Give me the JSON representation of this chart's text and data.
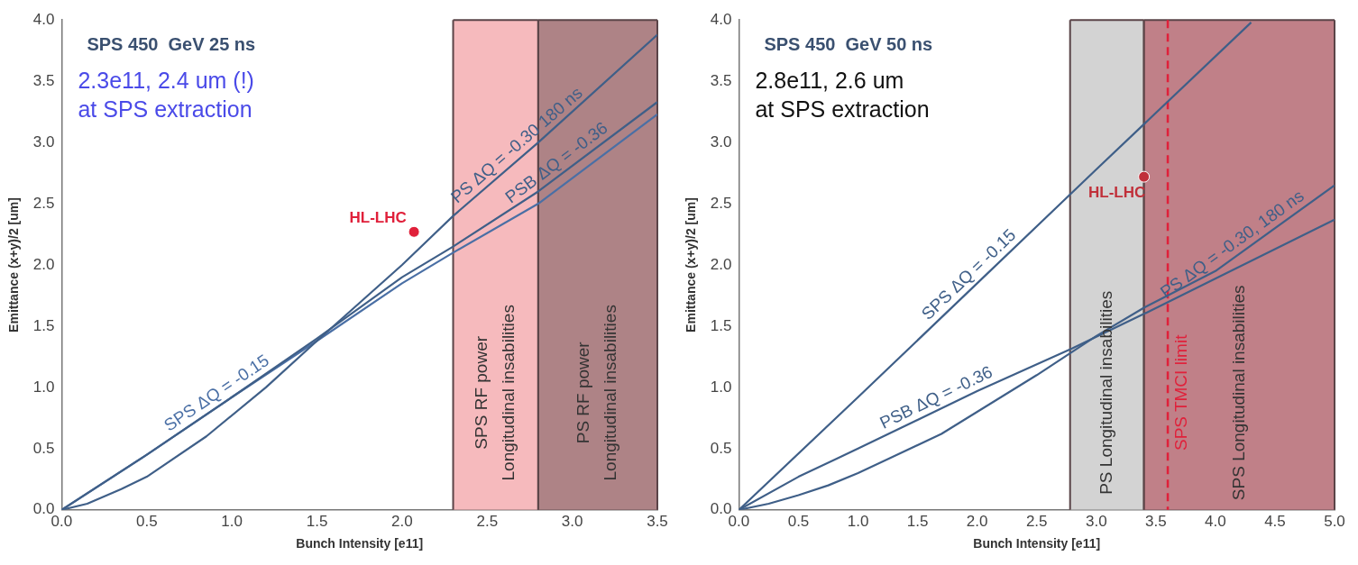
{
  "chart_data": [
    {
      "type": "line",
      "title": "SPS 450  GeV 25 ns",
      "annotations": [
        "2.3e11, 2.4 um (!)\nat SPS extraction"
      ],
      "xlabel": "Bunch Intensity [e11]",
      "ylabel": "Emittance (x+y)/2 [um]",
      "marker": "none",
      "xlim": [
        0,
        3.5
      ],
      "ylim": [
        0,
        4
      ],
      "xticks": [
        {
          "value": 0,
          "label": "0.0"
        },
        {
          "value": 0.5,
          "label": "0.5"
        },
        {
          "value": 1,
          "label": "1.0"
        },
        {
          "value": 1.5,
          "label": "1.5"
        },
        {
          "value": 2,
          "label": "2.0"
        },
        {
          "value": 2.5,
          "label": "2.5"
        },
        {
          "value": 3,
          "label": "3.0"
        },
        {
          "value": 3.5,
          "label": "3.5"
        }
      ],
      "yticks": [
        {
          "value": 0,
          "label": "0.0"
        },
        {
          "value": 0.5,
          "label": "0.5"
        },
        {
          "value": 1,
          "label": "1.0"
        },
        {
          "value": 1.5,
          "label": "1.5"
        },
        {
          "value": 2,
          "label": "2.0"
        },
        {
          "value": 2.5,
          "label": "2.5"
        },
        {
          "value": 3,
          "label": "3.0"
        },
        {
          "value": 3.5,
          "label": "3.5"
        },
        {
          "value": 4,
          "label": "4.0"
        }
      ],
      "bands": [
        {
          "axis": "x",
          "from": 2.3,
          "to": 2.8,
          "label": "SPS RF power\nLongitudinal insabilities",
          "color": "#f4a9ad"
        },
        {
          "axis": "x",
          "from": 2.8,
          "to": 3.5,
          "label": "PS RF power\nLongitudinal insabilities",
          "color": "#9a6468"
        }
      ],
      "series": [
        {
          "name": "PS ΔQ = -0.30 180 ns",
          "color": "#3f5f88",
          "x": [
            0,
            0.15,
            0.35,
            0.5,
            0.85,
            1.2,
            1.5,
            2.0,
            2.3,
            2.8,
            3.5
          ],
          "values": [
            0,
            0.05,
            0.17,
            0.27,
            0.6,
            1.0,
            1.38,
            2.0,
            2.4,
            3.0,
            3.88
          ]
        },
        {
          "name": "PSB ΔQ = -0.36",
          "color": "#3f5f88",
          "x": [
            0,
            0.5,
            1.0,
            1.5,
            2.0,
            2.3,
            2.8,
            3.5
          ],
          "values": [
            0,
            0.45,
            0.92,
            1.4,
            1.9,
            2.15,
            2.6,
            3.33
          ]
        },
        {
          "name": "SPS ΔQ = -0.15",
          "color": "#4a6fa5",
          "x": [
            0,
            0.5,
            1.0,
            1.5,
            2.0,
            2.3,
            2.8,
            3.5
          ],
          "values": [
            0,
            0.45,
            0.92,
            1.38,
            1.85,
            2.1,
            2.5,
            3.23
          ]
        },
        {
          "name": "HL-LHC",
          "type": "scatter",
          "marker": "circle",
          "color": "#e0203a",
          "x": [
            2.07
          ],
          "values": [
            2.27
          ]
        }
      ]
    },
    {
      "type": "line",
      "title": "SPS 450  GeV 50 ns",
      "annotations": [
        "2.8e11, 2.6 um\nat SPS extraction"
      ],
      "xlabel": "Bunch Intensity [e11]",
      "ylabel": "Emittance (x+y)/2 [um]",
      "marker": "none",
      "xlim": [
        0,
        5
      ],
      "ylim": [
        0,
        4
      ],
      "xticks": [
        {
          "value": 0,
          "label": "0.0"
        },
        {
          "value": 0.5,
          "label": "0.5"
        },
        {
          "value": 1,
          "label": "1.0"
        },
        {
          "value": 1.5,
          "label": "1.5"
        },
        {
          "value": 2,
          "label": "2.0"
        },
        {
          "value": 2.5,
          "label": "2.5"
        },
        {
          "value": 3,
          "label": "3.0"
        },
        {
          "value": 3.5,
          "label": "3.5"
        },
        {
          "value": 4,
          "label": "4.0"
        },
        {
          "value": 4.5,
          "label": "4.5"
        },
        {
          "value": 5,
          "label": "5.0"
        }
      ],
      "yticks": [
        {
          "value": 0,
          "label": "0.0"
        },
        {
          "value": 0.5,
          "label": "0.5"
        },
        {
          "value": 1,
          "label": "1.0"
        },
        {
          "value": 1.5,
          "label": "1.5"
        },
        {
          "value": 2,
          "label": "2.0"
        },
        {
          "value": 2.5,
          "label": "2.5"
        },
        {
          "value": 3,
          "label": "3.0"
        },
        {
          "value": 3.5,
          "label": "3.5"
        },
        {
          "value": 4,
          "label": "4.0"
        }
      ],
      "bands": [
        {
          "axis": "x",
          "from": 2.78,
          "to": 3.4,
          "label": "PS Longitudinal insabilities",
          "color": "#c8c8c8"
        },
        {
          "axis": "x",
          "from": 3.4,
          "to": 5,
          "label": "SPS Longitudinal insabilities",
          "color": "#b0606a"
        }
      ],
      "ref_lines": [
        {
          "axis": "x",
          "value": 3.6,
          "label": "SPS TMCI limit",
          "color": "#e0203a",
          "line_style": "dashed"
        }
      ],
      "series": [
        {
          "name": "SPS ΔQ = -0.15",
          "color": "#3f5f88",
          "x": [
            0,
            1,
            2,
            3,
            4.3
          ],
          "values": [
            0,
            0.92,
            1.85,
            2.78,
            3.98
          ]
        },
        {
          "name": "PS ΔQ = -0.30, 180 ns",
          "color": "#3f5f88",
          "x": [
            0,
            0.25,
            0.5,
            0.75,
            1.0,
            1.7,
            2.5,
            3.0,
            3.4,
            4.0,
            5.0
          ],
          "values": [
            0,
            0.05,
            0.12,
            0.2,
            0.3,
            0.62,
            1.1,
            1.42,
            1.65,
            1.95,
            2.65
          ]
        },
        {
          "name": "PSB ΔQ = -0.36",
          "color": "#3f5f88",
          "x": [
            0,
            0.5,
            1.0,
            2.0,
            2.8,
            3.4,
            5.0
          ],
          "values": [
            0,
            0.27,
            0.5,
            0.97,
            1.32,
            1.6,
            2.37
          ]
        },
        {
          "name": "HL-LHC",
          "type": "scatter",
          "marker": "circle",
          "color": "#c0303a",
          "x": [
            3.4
          ],
          "values": [
            2.72
          ]
        }
      ]
    }
  ]
}
